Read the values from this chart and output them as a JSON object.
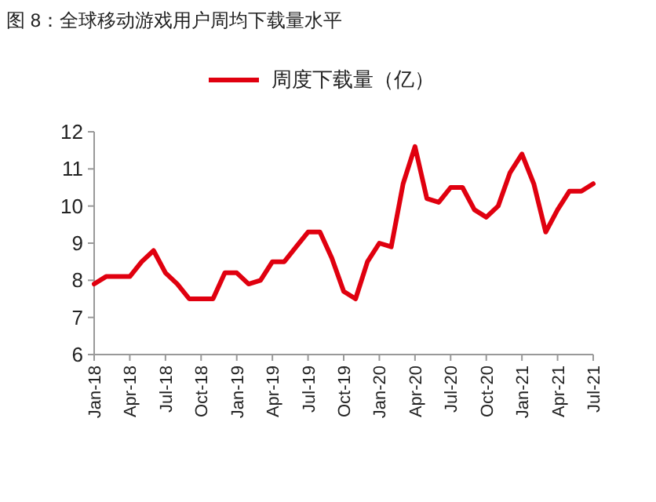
{
  "chart_data": {
    "type": "line",
    "title": "图 8：全球移动游戏用户周均下载量水平",
    "categories": [
      "Jan-18",
      null,
      null,
      "Apr-18",
      null,
      null,
      "Jul-18",
      null,
      null,
      "Oct-18",
      null,
      null,
      "Jan-19",
      null,
      null,
      "Apr-19",
      null,
      null,
      "Jul-19",
      null,
      null,
      "Oct-19",
      null,
      null,
      "Jan-20",
      null,
      null,
      "Apr-20",
      null,
      null,
      "Jul-20",
      null,
      null,
      "Oct-20",
      null,
      null,
      "Jan-21",
      null,
      null,
      "Apr-21",
      null,
      null,
      "Jul-21"
    ],
    "series": [
      {
        "name": "周度下载量（亿）",
        "color": "#e0000f",
        "values": [
          7.9,
          8.1,
          8.1,
          8.1,
          8.5,
          8.8,
          8.2,
          7.9,
          7.5,
          7.5,
          7.5,
          8.2,
          8.2,
          7.9,
          8.0,
          8.5,
          8.5,
          8.9,
          9.3,
          9.3,
          8.6,
          7.7,
          7.5,
          8.5,
          9.0,
          8.9,
          10.6,
          11.6,
          10.2,
          10.1,
          10.5,
          10.5,
          9.9,
          9.7,
          10.0,
          10.9,
          11.4,
          10.6,
          9.3,
          9.9,
          10.4,
          10.4,
          10.6
        ]
      }
    ],
    "ylim": [
      6,
      12
    ],
    "yticks": [
      6,
      7,
      8,
      9,
      10,
      11,
      12
    ],
    "legend": "top"
  }
}
